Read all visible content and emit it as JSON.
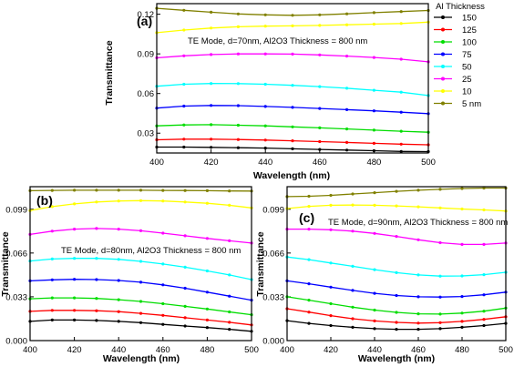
{
  "legend": {
    "title": "Al Thickness",
    "entries": [
      "150",
      "125",
      "100",
      "75",
      "50",
      "25",
      "10",
      "5 nm"
    ],
    "colors": [
      "#000000",
      "#ff0000",
      "#00dd00",
      "#0000ff",
      "#00ffff",
      "#ff00ff",
      "#ffff00",
      "#808000"
    ]
  },
  "chart_data": [
    {
      "type": "line",
      "panel_label": "(a)",
      "annotation": "TE Mode, d=70nm, Al2O3 Thickness = 800 nm",
      "xlabel": "Wavelength (nm)",
      "ylabel": "Transmittance",
      "xlim": [
        400,
        500
      ],
      "ylim": [
        0.015,
        0.128
      ],
      "xticks": [
        400,
        420,
        440,
        460,
        480,
        500
      ],
      "yticks": [
        0.03,
        0.06,
        0.09,
        0.12
      ],
      "ytick_labels": [
        "0.03",
        "0.06",
        "0.09",
        "0.12"
      ],
      "x": [
        400,
        410,
        420,
        430,
        440,
        450,
        460,
        470,
        480,
        490,
        500
      ],
      "series": [
        {
          "name": "150",
          "values": [
            0.0195,
            0.0195,
            0.0193,
            0.019,
            0.0187,
            0.0182,
            0.0177,
            0.0172,
            0.0167,
            0.0162,
            0.016
          ]
        },
        {
          "name": "125",
          "values": [
            0.025,
            0.0255,
            0.0255,
            0.0252,
            0.0248,
            0.0242,
            0.0236,
            0.023,
            0.0223,
            0.0217,
            0.0212
          ]
        },
        {
          "name": "100",
          "values": [
            0.0355,
            0.0362,
            0.0364,
            0.036,
            0.0355,
            0.0348,
            0.034,
            0.0332,
            0.0323,
            0.0315,
            0.0307
          ]
        },
        {
          "name": "75",
          "values": [
            0.049,
            0.0505,
            0.051,
            0.0508,
            0.0502,
            0.0495,
            0.0487,
            0.0478,
            0.0469,
            0.0459,
            0.0448
          ]
        },
        {
          "name": "50",
          "values": [
            0.0655,
            0.067,
            0.0676,
            0.0675,
            0.067,
            0.0662,
            0.0652,
            0.064,
            0.0625,
            0.061,
            0.0585
          ]
        },
        {
          "name": "25",
          "values": [
            0.087,
            0.0885,
            0.0895,
            0.09,
            0.09,
            0.0898,
            0.0892,
            0.0883,
            0.0873,
            0.086,
            0.084
          ]
        },
        {
          "name": "10",
          "values": [
            0.106,
            0.108,
            0.1095,
            0.1105,
            0.111,
            0.1112,
            0.1115,
            0.112,
            0.1125,
            0.113,
            0.114
          ]
        },
        {
          "name": "5 nm",
          "values": [
            0.1245,
            0.123,
            0.1215,
            0.1202,
            0.1195,
            0.1192,
            0.1195,
            0.1203,
            0.1212,
            0.122,
            0.1228
          ]
        }
      ]
    },
    {
      "type": "line",
      "panel_label": "(b)",
      "annotation": "TE Mode, d=80nm, Al2O3  Thickness = 800 nm",
      "xlabel": "Wavelength (nm)",
      "ylabel": "Transmittance",
      "xlim": [
        400,
        500
      ],
      "ylim": [
        0,
        0.116
      ],
      "xticks": [
        400,
        420,
        440,
        460,
        480,
        500
      ],
      "yticks": [
        0,
        0.033,
        0.066,
        0.099
      ],
      "ytick_labels": [
        "0.000",
        "0.033",
        "0.066",
        "0.099"
      ],
      "x": [
        400,
        410,
        420,
        430,
        440,
        450,
        460,
        470,
        480,
        490,
        500
      ],
      "series": [
        {
          "name": "150",
          "values": [
            0.0145,
            0.0155,
            0.0155,
            0.0152,
            0.0145,
            0.0135,
            0.0122,
            0.011,
            0.0098,
            0.0085,
            0.007
          ]
        },
        {
          "name": "125",
          "values": [
            0.022,
            0.0228,
            0.0228,
            0.0225,
            0.0218,
            0.0205,
            0.019,
            0.0172,
            0.0155,
            0.0138,
            0.0118
          ]
        },
        {
          "name": "100",
          "values": [
            0.0315,
            0.0322,
            0.0322,
            0.0318,
            0.0308,
            0.0295,
            0.0278,
            0.0258,
            0.0238,
            0.0216,
            0.0195
          ]
        },
        {
          "name": "75",
          "values": [
            0.045,
            0.0458,
            0.0462,
            0.046,
            0.0453,
            0.044,
            0.042,
            0.0395,
            0.0365,
            0.0335,
            0.0305
          ]
        },
        {
          "name": "50",
          "values": [
            0.06,
            0.0615,
            0.062,
            0.062,
            0.0612,
            0.0597,
            0.0577,
            0.0553,
            0.0525,
            0.0495,
            0.046
          ]
        },
        {
          "name": "25",
          "values": [
            0.08,
            0.0825,
            0.084,
            0.0845,
            0.084,
            0.0828,
            0.081,
            0.079,
            0.077,
            0.0752,
            0.0735
          ]
        },
        {
          "name": "10",
          "values": [
            0.098,
            0.101,
            0.103,
            0.1045,
            0.1052,
            0.1055,
            0.1052,
            0.1045,
            0.1035,
            0.102,
            0.1
          ]
        },
        {
          "name": "5 nm",
          "values": [
            0.113,
            0.1132,
            0.1133,
            0.1133,
            0.1133,
            0.1133,
            0.1132,
            0.1131,
            0.113,
            0.1128,
            0.1127
          ]
        }
      ]
    },
    {
      "type": "line",
      "panel_label": "(c)",
      "annotation": "TE Mode, d=90nm, Al2O3 Thickness = 800 nm",
      "xlabel": "Wavelength (nm)",
      "ylabel": "Transmittance",
      "xlim": [
        400,
        500
      ],
      "ylim": [
        0,
        0.116
      ],
      "xticks": [
        400,
        420,
        440,
        460,
        480,
        500
      ],
      "yticks": [
        0,
        0.033,
        0.066,
        0.099
      ],
      "ytick_labels": [
        "0.000",
        "0.033",
        "0.066",
        "0.099"
      ],
      "x": [
        400,
        410,
        420,
        430,
        440,
        450,
        460,
        470,
        480,
        490,
        500
      ],
      "series": [
        {
          "name": "150",
          "values": [
            0.015,
            0.013,
            0.0113,
            0.01,
            0.009,
            0.0085,
            0.0085,
            0.009,
            0.01,
            0.0113,
            0.013
          ]
        },
        {
          "name": "125",
          "values": [
            0.024,
            0.0215,
            0.0188,
            0.0165,
            0.0148,
            0.0137,
            0.0132,
            0.0135,
            0.0145,
            0.016,
            0.018
          ]
        },
        {
          "name": "100",
          "values": [
            0.033,
            0.0305,
            0.0278,
            0.0252,
            0.023,
            0.0213,
            0.0202,
            0.02,
            0.0207,
            0.0222,
            0.0245
          ]
        },
        {
          "name": "75",
          "values": [
            0.045,
            0.0428,
            0.0403,
            0.0378,
            0.0356,
            0.034,
            0.033,
            0.0328,
            0.0332,
            0.0345,
            0.0365
          ]
        },
        {
          "name": "50",
          "values": [
            0.063,
            0.061,
            0.0585,
            0.056,
            0.0535,
            0.0512,
            0.0495,
            0.0486,
            0.0487,
            0.0497,
            0.0515
          ]
        },
        {
          "name": "25",
          "values": [
            0.084,
            0.084,
            0.0835,
            0.0825,
            0.0808,
            0.0785,
            0.076,
            0.0738,
            0.0725,
            0.0725,
            0.0735
          ]
        },
        {
          "name": "10",
          "values": [
            0.0995,
            0.1012,
            0.102,
            0.1022,
            0.102,
            0.1015,
            0.1008,
            0.1,
            0.0992,
            0.0985,
            0.0977
          ]
        },
        {
          "name": "5 nm",
          "values": [
            0.1085,
            0.1088,
            0.1095,
            0.1105,
            0.1115,
            0.1125,
            0.1133,
            0.114,
            0.1146,
            0.115,
            0.115
          ]
        }
      ]
    }
  ]
}
